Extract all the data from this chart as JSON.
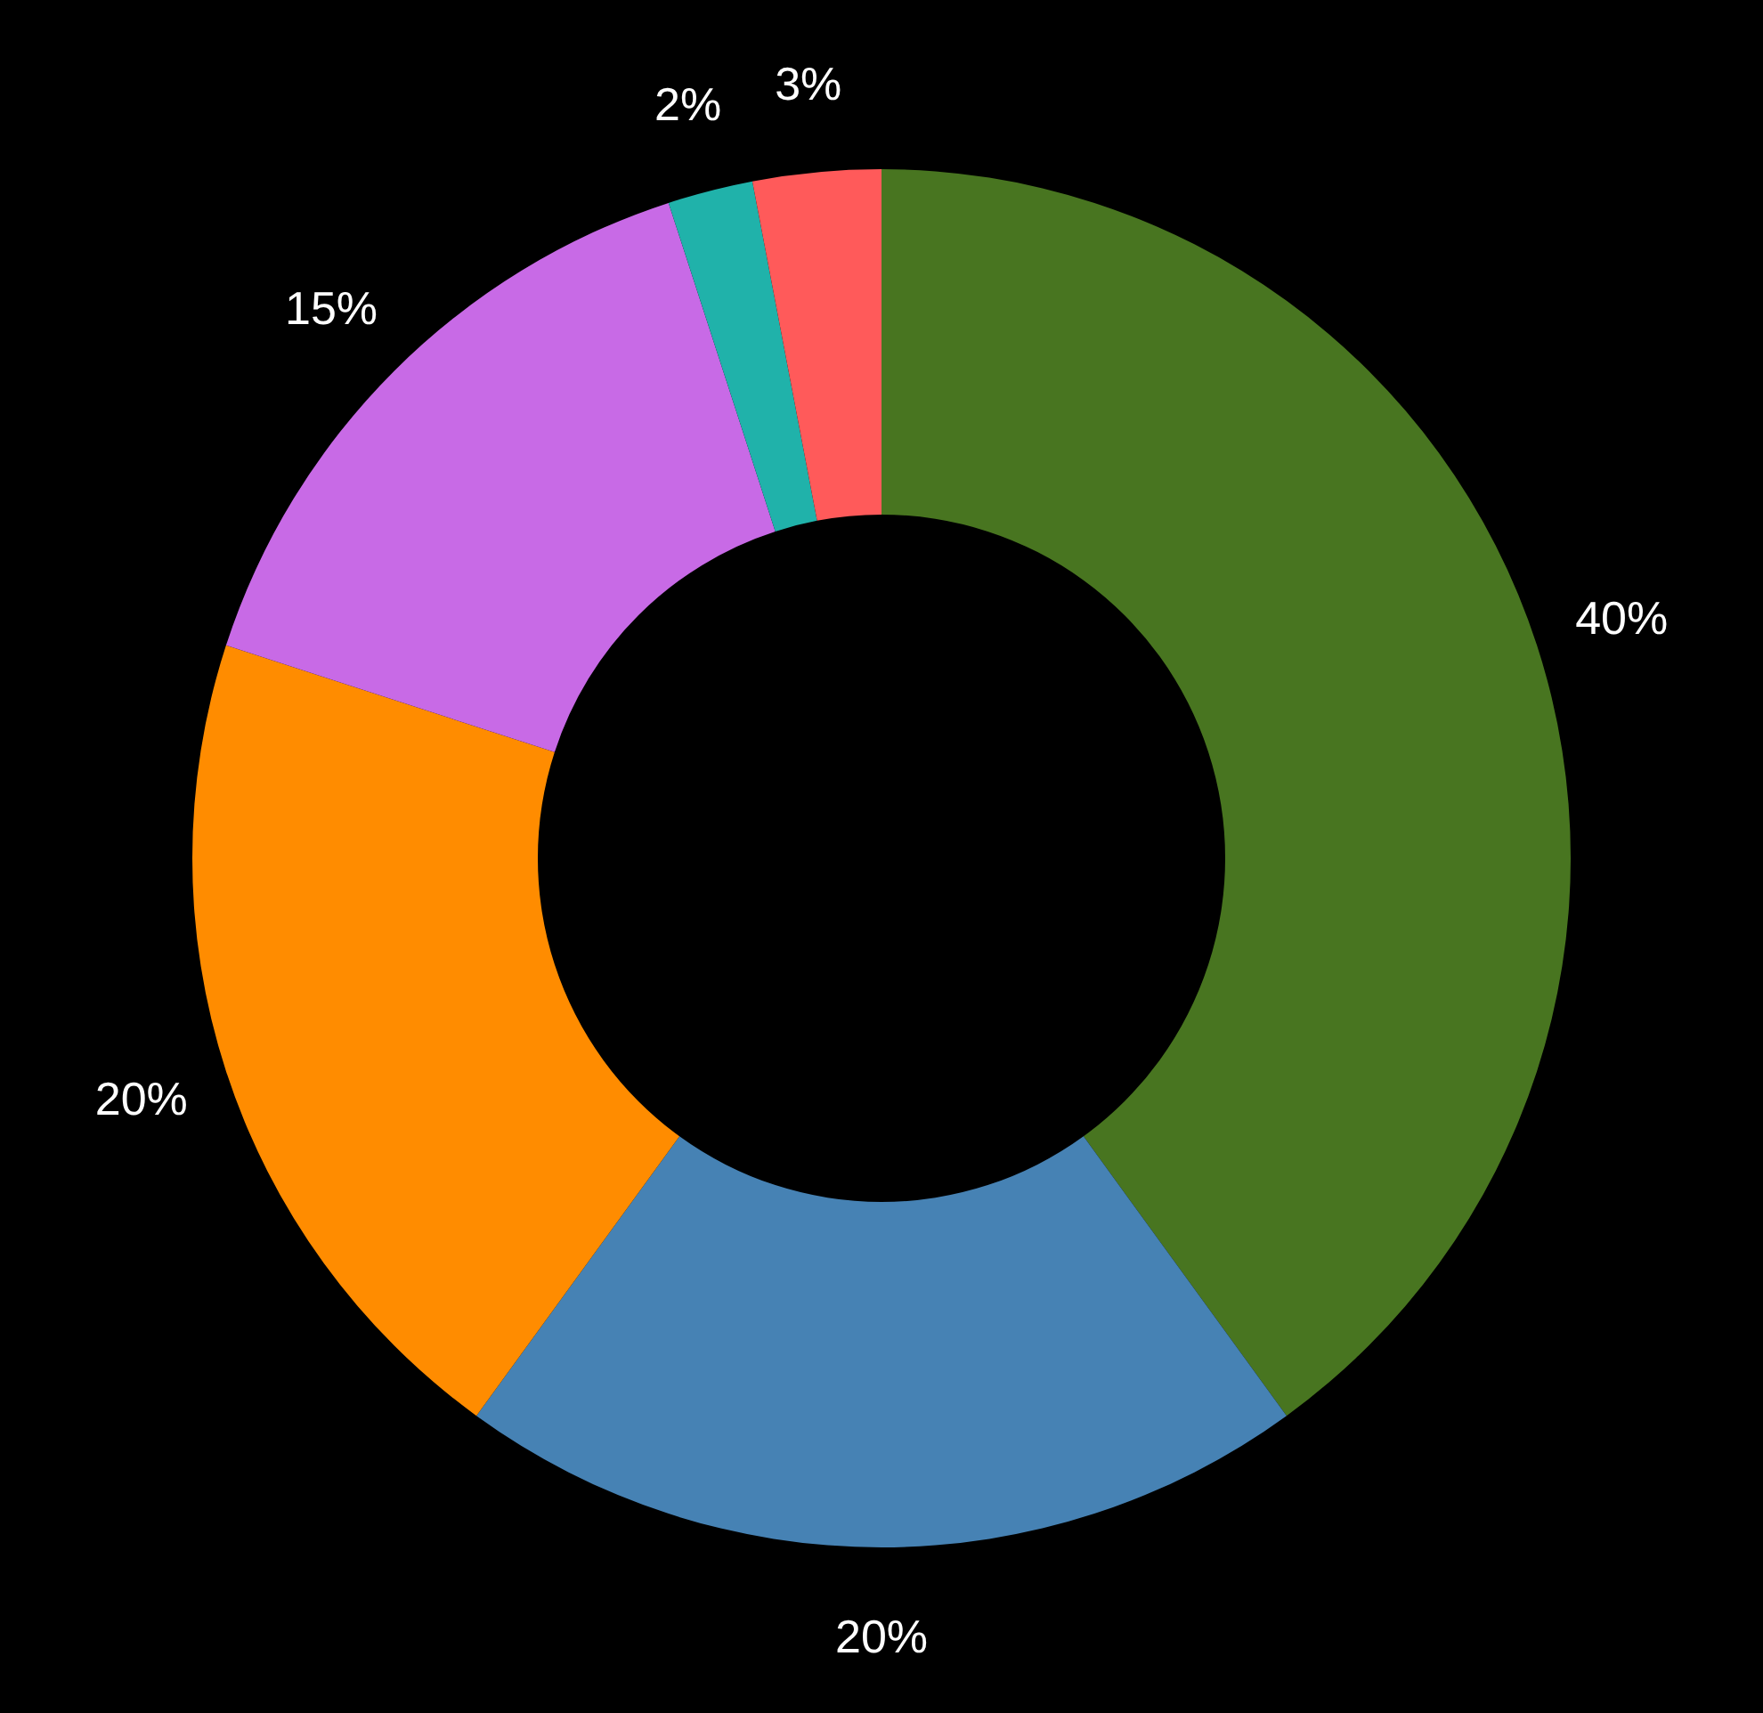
{
  "chart_data": {
    "type": "donut",
    "categories": [
      null,
      null,
      null,
      null,
      null,
      null
    ],
    "values": [
      40,
      20,
      20,
      15,
      2,
      3
    ],
    "colors": [
      "#487520",
      "#4682b4",
      "#ff8c00",
      "#c86ae6",
      "#20b2aa",
      "#ff5a5a"
    ],
    "value_labels": [
      "40%",
      "20%",
      "20%",
      "15%",
      "2%",
      "3%"
    ]
  }
}
